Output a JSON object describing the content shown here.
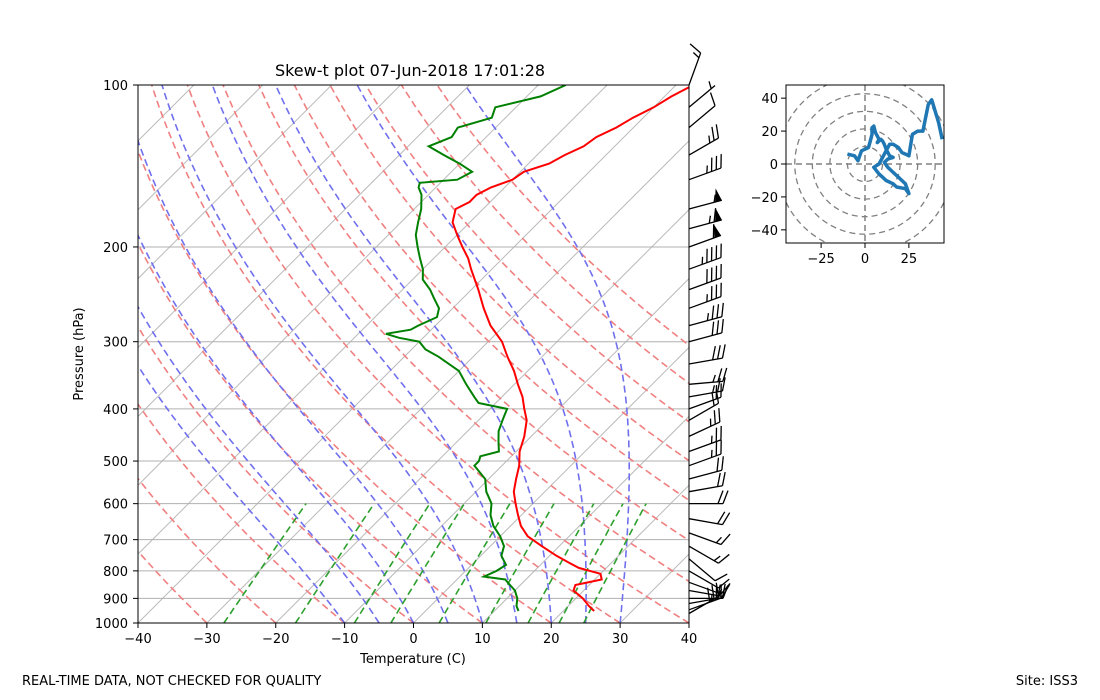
{
  "chart_data": [
    {
      "type": "line",
      "title": "Skew-t plot 07-Jun-2018 17:01:28",
      "xlabel": "Temperature (C)",
      "ylabel": "Pressure (hPa)",
      "xlim": [
        -40,
        40
      ],
      "ylim": [
        1000,
        100
      ],
      "y_scale": "log",
      "x_ticks": [
        -40,
        -30,
        -20,
        -10,
        0,
        10,
        20,
        30,
        40
      ],
      "x_tick_labels": [
        "−40",
        "−30",
        "−20",
        "−10",
        "0",
        "10",
        "20",
        "30",
        "40"
      ],
      "y_ticks": [
        1000,
        900,
        800,
        700,
        600,
        500,
        400,
        300,
        200,
        100
      ],
      "y_tick_labels": [
        "1000",
        "900",
        "800",
        "700",
        "600",
        "500",
        "400",
        "300",
        "200",
        "100"
      ],
      "grid": true,
      "dry_adiabat_surface_temps_c": [
        -30,
        -20,
        -10,
        0,
        10,
        20,
        30,
        40,
        50,
        60,
        70,
        80,
        90,
        100,
        110
      ],
      "moist_adiabat_surface_temps_c": [
        -10,
        -5,
        0,
        5,
        10,
        15,
        20,
        25,
        30
      ],
      "mixing_ratios_gkg": [
        0.4,
        1,
        2,
        3,
        5,
        8,
        12,
        16,
        20
      ],
      "colors": {
        "temperature": "#ff0000",
        "dewpoint": "#008000",
        "dry_adiabats": "#f08080",
        "moist_adiabats": "#7070ee",
        "mixing_ratio": "#2ca02c",
        "isotherms": "#bbbbbb",
        "isobars": "#b0b0b0"
      },
      "series": [
        {
          "pressure_hpa": [
            950,
            930,
            900,
            870,
            850,
            830,
            810,
            790,
            770,
            750,
            720,
            690,
            660,
            630,
            600,
            570,
            540,
            510,
            480,
            450,
            420,
            400,
            380,
            360,
            340,
            320,
            300,
            280,
            260,
            240,
            220,
            210,
            200,
            190,
            180,
            170,
            165,
            160,
            155,
            150,
            145,
            140,
            135,
            130,
            125,
            120,
            115,
            110,
            105,
            100
          ],
          "temperature_c": [
            24.5,
            23.0,
            21.0,
            18.5,
            18.0,
            21.0,
            20.0,
            16.0,
            13.5,
            11.0,
            7.5,
            4.0,
            1.5,
            -0.5,
            -2.5,
            -4.5,
            -6.0,
            -7.5,
            -9.5,
            -11.0,
            -13.0,
            -15.0,
            -17.0,
            -19.5,
            -22.0,
            -25.0,
            -28.0,
            -32.0,
            -35.5,
            -39.0,
            -43.0,
            -45.0,
            -47.5,
            -50.0,
            -52.5,
            -54.0,
            -53.0,
            -53.0,
            -52.0,
            -50.0,
            -49.5,
            -47.0,
            -46.0,
            -44.5,
            -44.0,
            -42.5,
            -41.5,
            -40.0,
            -39.0,
            -37.5
          ]
        },
        {
          "pressure_hpa": [
            950,
            930,
            900,
            870,
            850,
            830,
            820,
            800,
            780,
            750,
            720,
            690,
            660,
            630,
            600,
            570,
            540,
            510,
            500,
            490,
            480,
            460,
            440,
            420,
            410,
            400,
            390,
            380,
            360,
            340,
            320,
            310,
            300,
            295,
            290,
            285,
            280,
            270,
            260,
            250,
            240,
            230,
            220,
            210,
            200,
            190,
            180,
            170,
            160,
            155,
            152,
            150,
            145,
            140,
            135,
            130,
            125,
            120,
            115,
            110,
            105,
            100
          ],
          "dewpoint_c": [
            13.5,
            12.5,
            11.5,
            10.0,
            8.5,
            7.0,
            3.5,
            4.5,
            5.0,
            3.0,
            2.0,
            0.0,
            -2.5,
            -4.5,
            -6.0,
            -8.5,
            -10.5,
            -14.0,
            -14.0,
            -14.5,
            -12.5,
            -14.0,
            -15.5,
            -16.5,
            -17.0,
            -17.5,
            -22.5,
            -24.0,
            -27.0,
            -30.0,
            -35.0,
            -38.0,
            -40.0,
            -43.5,
            -46.0,
            -43.0,
            -42.5,
            -41.0,
            -42.0,
            -44.0,
            -46.0,
            -48.5,
            -50.0,
            -52.0,
            -54.0,
            -56.0,
            -57.5,
            -59.0,
            -61.0,
            -62.5,
            -63.0,
            -58.0,
            -57.0,
            -60.0,
            -63.5,
            -67.0,
            -65.0,
            -65.5,
            -62.0,
            -63.0,
            -58.0,
            -56.0
          ]
        }
      ],
      "wind_barbs": [
        {
          "pressure_hpa": 960,
          "speed_kt": 30,
          "direction_deg": 240
        },
        {
          "pressure_hpa": 945,
          "speed_kt": 25,
          "direction_deg": 250
        },
        {
          "pressure_hpa": 920,
          "speed_kt": 20,
          "direction_deg": 260
        },
        {
          "pressure_hpa": 900,
          "speed_kt": 15,
          "direction_deg": 270
        },
        {
          "pressure_hpa": 870,
          "speed_kt": 15,
          "direction_deg": 280
        },
        {
          "pressure_hpa": 840,
          "speed_kt": 10,
          "direction_deg": 290
        },
        {
          "pressure_hpa": 800,
          "speed_kt": 10,
          "direction_deg": 300
        },
        {
          "pressure_hpa": 760,
          "speed_kt": 10,
          "direction_deg": 310
        },
        {
          "pressure_hpa": 720,
          "speed_kt": 15,
          "direction_deg": 300
        },
        {
          "pressure_hpa": 680,
          "speed_kt": 15,
          "direction_deg": 290
        },
        {
          "pressure_hpa": 640,
          "speed_kt": 20,
          "direction_deg": 280
        },
        {
          "pressure_hpa": 600,
          "speed_kt": 20,
          "direction_deg": 270
        },
        {
          "pressure_hpa": 570,
          "speed_kt": 20,
          "direction_deg": 260
        },
        {
          "pressure_hpa": 540,
          "speed_kt": 20,
          "direction_deg": 255
        },
        {
          "pressure_hpa": 510,
          "speed_kt": 25,
          "direction_deg": 250
        },
        {
          "pressure_hpa": 480,
          "speed_kt": 25,
          "direction_deg": 250
        },
        {
          "pressure_hpa": 450,
          "speed_kt": 25,
          "direction_deg": 245
        },
        {
          "pressure_hpa": 420,
          "speed_kt": 20,
          "direction_deg": 240
        },
        {
          "pressure_hpa": 400,
          "speed_kt": 20,
          "direction_deg": 250
        },
        {
          "pressure_hpa": 380,
          "speed_kt": 25,
          "direction_deg": 260
        },
        {
          "pressure_hpa": 360,
          "speed_kt": 25,
          "direction_deg": 265
        },
        {
          "pressure_hpa": 330,
          "speed_kt": 30,
          "direction_deg": 260
        },
        {
          "pressure_hpa": 300,
          "speed_kt": 30,
          "direction_deg": 255
        },
        {
          "pressure_hpa": 280,
          "speed_kt": 35,
          "direction_deg": 255
        },
        {
          "pressure_hpa": 260,
          "speed_kt": 35,
          "direction_deg": 250
        },
        {
          "pressure_hpa": 240,
          "speed_kt": 40,
          "direction_deg": 250
        },
        {
          "pressure_hpa": 220,
          "speed_kt": 45,
          "direction_deg": 250
        },
        {
          "pressure_hpa": 200,
          "speed_kt": 60,
          "direction_deg": 250
        },
        {
          "pressure_hpa": 185,
          "speed_kt": 65,
          "direction_deg": 255
        },
        {
          "pressure_hpa": 170,
          "speed_kt": 55,
          "direction_deg": 255
        },
        {
          "pressure_hpa": 150,
          "speed_kt": 35,
          "direction_deg": 250
        },
        {
          "pressure_hpa": 135,
          "speed_kt": 25,
          "direction_deg": 240
        },
        {
          "pressure_hpa": 120,
          "speed_kt": 10,
          "direction_deg": 230
        },
        {
          "pressure_hpa": 110,
          "speed_kt": 5,
          "direction_deg": 230
        },
        {
          "pressure_hpa": 100,
          "speed_kt": 15,
          "direction_deg": 200
        }
      ]
    },
    {
      "type": "line",
      "title": "",
      "xlim": [
        -45,
        45
      ],
      "ylim": [
        -48,
        48
      ],
      "x_ticks": [
        -25,
        0,
        25
      ],
      "x_tick_labels": [
        "−25",
        "0",
        "25"
      ],
      "y_ticks": [
        -40,
        -20,
        0,
        20,
        40
      ],
      "y_tick_labels": [
        "−40",
        "−20",
        "0",
        "20",
        "40"
      ],
      "range_rings": [
        10,
        20,
        30,
        40,
        50
      ],
      "colors": {
        "hodograph": "#1f77b4",
        "rings": "#808080"
      },
      "series": [
        {
          "u": [
            -10,
            -6,
            -4,
            -2,
            0,
            2,
            3,
            4,
            4,
            5,
            6,
            7,
            8,
            7,
            9,
            10,
            11,
            12,
            14,
            16,
            13,
            11,
            13,
            15,
            17,
            19,
            21,
            23,
            25,
            23,
            18,
            16,
            12,
            10,
            8,
            5,
            8,
            10,
            12,
            14,
            16,
            19,
            21,
            23,
            25,
            27,
            30,
            33,
            36,
            38,
            42,
            44
          ],
          "v": [
            6,
            5,
            2,
            8,
            9,
            10,
            14,
            18,
            22,
            23,
            19,
            17,
            15,
            13,
            15,
            14,
            12,
            9,
            5,
            4,
            3,
            1,
            -2,
            -4,
            -6,
            -8,
            -10,
            -12,
            -18,
            -15,
            -14,
            -12,
            -10,
            -8,
            -6,
            -2,
            0,
            4,
            8,
            12,
            12,
            10,
            7,
            6,
            5,
            18,
            20,
            20,
            36,
            39,
            25,
            15
          ]
        }
      ]
    }
  ],
  "footer": {
    "left_text": "REAL-TIME DATA, NOT CHECKED FOR QUALITY",
    "right_text": "Site: ISS3"
  }
}
